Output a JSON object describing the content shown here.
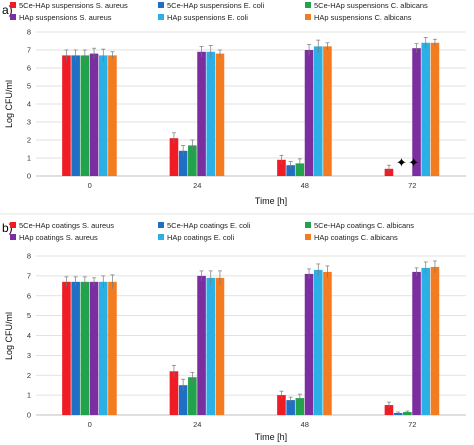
{
  "colors": {
    "s1": "#ee1c25",
    "s2": "#1f6fc5",
    "s3": "#22a24b",
    "s4": "#7b2ea0",
    "s5": "#2ab0e5",
    "s6": "#f47c20",
    "marker": "#000000"
  },
  "chart_data": [
    {
      "type": "bar",
      "panel_label": "a)",
      "categories": [
        "0",
        "24",
        "48",
        "72"
      ],
      "xlabel": "Time [h]",
      "ylabel": "Log CFU/ml",
      "ylim": [
        0,
        8
      ],
      "yticks": [
        "0",
        "1",
        "2",
        "3",
        "4",
        "5",
        "6",
        "7",
        "8"
      ],
      "grid": "horizontal",
      "legend_position": "top",
      "series": [
        {
          "name": "5Ce-HAp suspensions S. aureus",
          "color_key": "s1",
          "values": [
            6.7,
            2.1,
            0.9,
            0.4
          ],
          "errors": [
            0.3,
            0.3,
            0.25,
            0.2
          ]
        },
        {
          "name": "5Ce-HAp suspensions E. coli",
          "color_key": "s2",
          "values": [
            6.7,
            1.4,
            0.6,
            0.0
          ],
          "errors": [
            0.3,
            0.3,
            0.2,
            0.0
          ]
        },
        {
          "name": "5Ce-HAp suspensions C. albicans",
          "color_key": "s3",
          "values": [
            6.7,
            1.7,
            0.7,
            0.0
          ],
          "errors": [
            0.3,
            0.3,
            0.25,
            0.0
          ]
        },
        {
          "name": "HAp suspensions S. aureus",
          "color_key": "s4",
          "values": [
            6.8,
            6.9,
            7.0,
            7.1
          ],
          "errors": [
            0.3,
            0.3,
            0.3,
            0.25
          ]
        },
        {
          "name": "HAp suspensions E. coli",
          "color_key": "s5",
          "values": [
            6.7,
            6.9,
            7.2,
            7.4
          ],
          "errors": [
            0.35,
            0.35,
            0.35,
            0.3
          ]
        },
        {
          "name": "HAp suspensions C. albicans",
          "color_key": "s6",
          "values": [
            6.7,
            6.8,
            7.2,
            7.4
          ],
          "errors": [
            0.2,
            0.2,
            0.2,
            0.2
          ]
        }
      ],
      "markers": [
        {
          "category": "72",
          "series_index": 1,
          "symbol": "✦"
        },
        {
          "category": "72",
          "series_index": 2,
          "symbol": "✦"
        }
      ]
    },
    {
      "type": "bar",
      "panel_label": "b)",
      "categories": [
        "0",
        "24",
        "48",
        "72"
      ],
      "xlabel": "Time [h]",
      "ylabel": "Log CFU/ml",
      "ylim": [
        0,
        8
      ],
      "yticks": [
        "0",
        "1",
        "2",
        "3",
        "4",
        "5",
        "6",
        "7",
        "8"
      ],
      "grid": "horizontal",
      "legend_position": "top",
      "series": [
        {
          "name": "5Ce-HAp coatings S. aureus",
          "color_key": "s1",
          "values": [
            6.7,
            2.2,
            1.0,
            0.5
          ],
          "errors": [
            0.25,
            0.3,
            0.2,
            0.15
          ]
        },
        {
          "name": "5Ce-HAp coatings E. coli",
          "color_key": "s2",
          "values": [
            6.7,
            1.5,
            0.75,
            0.1
          ],
          "errors": [
            0.25,
            0.3,
            0.15,
            0.05
          ]
        },
        {
          "name": "5Ce-HAp coatings C. albicans",
          "color_key": "s3",
          "values": [
            6.7,
            1.9,
            0.85,
            0.15
          ],
          "errors": [
            0.25,
            0.25,
            0.2,
            0.05
          ]
        },
        {
          "name": "HAp coatings S. aureus",
          "color_key": "s4",
          "values": [
            6.7,
            7.0,
            7.1,
            7.2
          ],
          "errors": [
            0.2,
            0.25,
            0.25,
            0.2
          ]
        },
        {
          "name": "HAp coatings E. coli",
          "color_key": "s5",
          "values": [
            6.7,
            6.9,
            7.3,
            7.4
          ],
          "errors": [
            0.3,
            0.35,
            0.3,
            0.3
          ]
        },
        {
          "name": "HAp coatings C. albicans",
          "color_key": "s6",
          "values": [
            6.7,
            6.9,
            7.2,
            7.45
          ],
          "errors": [
            0.35,
            0.35,
            0.3,
            0.3
          ]
        }
      ],
      "markers": []
    }
  ]
}
